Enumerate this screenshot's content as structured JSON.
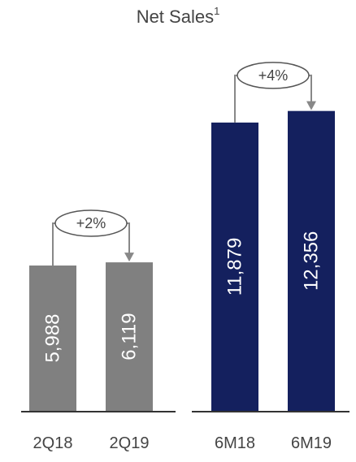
{
  "chart_data": {
    "type": "bar",
    "title": "Net Sales",
    "title_footnote": "1",
    "xlabel": "",
    "ylabel": "",
    "ylim": [
      0,
      14600
    ],
    "grid": false,
    "groups": [
      {
        "color": "#808080",
        "categories": [
          "2Q18",
          "2Q19"
        ],
        "values": [
          5988,
          6119
        ],
        "value_labels": [
          "5,988",
          "6,119"
        ],
        "growth_label": "+2%"
      },
      {
        "color": "#14205e",
        "categories": [
          "6M18",
          "6M19"
        ],
        "values": [
          11879,
          12356
        ],
        "value_labels": [
          "11,879",
          "12,356"
        ],
        "growth_label": "+4%"
      }
    ]
  }
}
